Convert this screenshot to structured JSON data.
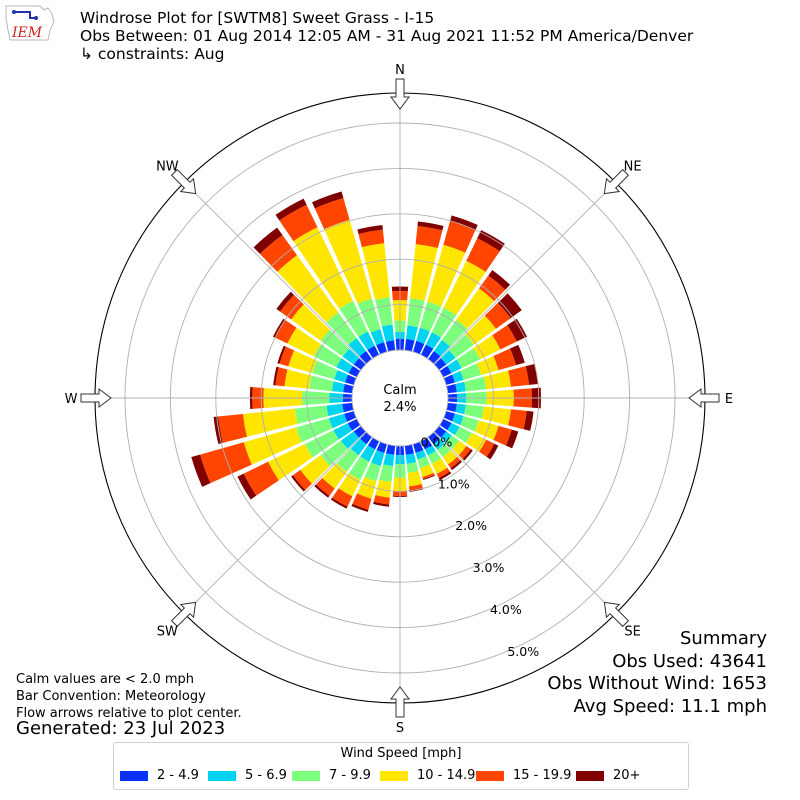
{
  "header": {
    "logo_text": "IEM",
    "title_line1": "Windrose Plot for [SWTM8] Sweet Grass - I-15",
    "title_line2": "Obs Between: 01 Aug 2014 12:05 AM - 31 Aug 2021 11:52 PM America/Denver",
    "title_line3": "↳ constraints: Aug"
  },
  "notes": {
    "line1": "Calm values are < 2.0 mph",
    "line2": "Bar Convention: Meteorology",
    "line3": "Flow arrows relative to plot center.",
    "generated": "Generated: 23 Jul 2023"
  },
  "summary": {
    "heading": "Summary",
    "obs_used": "Obs Used: 43641",
    "obs_without_wind": "Obs Without Wind: 1653",
    "avg_speed": "Avg Speed: 11.1 mph"
  },
  "chart_data": {
    "type": "windrose",
    "calm_label": "Calm",
    "calm_value": "2.4%",
    "direction_labels": [
      "N",
      "NE",
      "E",
      "SE",
      "S",
      "SW",
      "W",
      "NW"
    ],
    "radial_tick_labels": [
      "0.0%",
      "1.0%",
      "2.0%",
      "3.0%",
      "4.0%",
      "5.0%"
    ],
    "radial_range_percent": [
      0,
      5.5
    ],
    "grid": true,
    "legend_title": "Wind Speed [mph]",
    "legend_placement": "bottom",
    "bins": [
      {
        "label": "2 - 4.9",
        "color": "#0a32ff"
      },
      {
        "label": "5 - 6.9",
        "color": "#00d4f0"
      },
      {
        "label": "7 - 9.9",
        "color": "#7cff7c"
      },
      {
        "label": "10 - 14.9",
        "color": "#ffe600"
      },
      {
        "label": "15 - 19.9",
        "color": "#ff4500"
      },
      {
        "label": "20+",
        "color": "#800000"
      }
    ],
    "directions_deg": [
      0,
      10,
      20,
      30,
      40,
      50,
      60,
      70,
      80,
      90,
      100,
      110,
      120,
      130,
      140,
      150,
      160,
      170,
      180,
      190,
      200,
      210,
      220,
      230,
      240,
      250,
      260,
      270,
      280,
      290,
      300,
      310,
      320,
      330,
      340,
      350
    ],
    "frequency_percent_by_direction": [
      [
        0.25,
        0.15,
        0.25,
        0.45,
        0.2,
        0.1
      ],
      [
        0.25,
        0.3,
        0.6,
        1.2,
        0.4,
        0.1
      ],
      [
        0.25,
        0.3,
        0.6,
        1.3,
        0.55,
        0.12
      ],
      [
        0.25,
        0.3,
        0.6,
        1.15,
        0.55,
        0.2
      ],
      [
        0.22,
        0.3,
        0.55,
        0.85,
        0.35,
        0.15
      ],
      [
        0.2,
        0.25,
        0.5,
        0.6,
        0.4,
        0.3
      ],
      [
        0.2,
        0.25,
        0.45,
        0.5,
        0.4,
        0.25
      ],
      [
        0.2,
        0.2,
        0.4,
        0.4,
        0.4,
        0.2
      ],
      [
        0.2,
        0.2,
        0.45,
        0.55,
        0.4,
        0.2
      ],
      [
        0.2,
        0.2,
        0.45,
        0.6,
        0.4,
        0.2
      ],
      [
        0.2,
        0.2,
        0.4,
        0.6,
        0.35,
        0.15
      ],
      [
        0.2,
        0.2,
        0.35,
        0.45,
        0.3,
        0.15
      ],
      [
        0.2,
        0.2,
        0.3,
        0.35,
        0.2,
        0.1
      ],
      [
        0.2,
        0.15,
        0.2,
        0.2,
        0.12,
        0.05
      ],
      [
        0.2,
        0.15,
        0.2,
        0.2,
        0.1,
        0.05
      ],
      [
        0.2,
        0.15,
        0.2,
        0.25,
        0.1,
        0.05
      ],
      [
        0.2,
        0.15,
        0.2,
        0.2,
        0.05,
        0.02
      ],
      [
        0.2,
        0.2,
        0.2,
        0.3,
        0.1,
        0.02
      ],
      [
        0.2,
        0.2,
        0.3,
        0.3,
        0.1,
        0.02
      ],
      [
        0.2,
        0.25,
        0.35,
        0.35,
        0.15,
        0.05
      ],
      [
        0.2,
        0.3,
        0.35,
        0.4,
        0.25,
        0.05
      ],
      [
        0.2,
        0.3,
        0.45,
        0.4,
        0.25,
        0.05
      ],
      [
        0.2,
        0.3,
        0.45,
        0.45,
        0.2,
        0.05
      ],
      [
        0.2,
        0.35,
        0.55,
        0.55,
        0.2,
        0.05
      ],
      [
        0.22,
        0.35,
        0.7,
        0.9,
        0.6,
        0.15
      ],
      [
        0.22,
        0.35,
        0.75,
        1.2,
        1.0,
        0.2
      ],
      [
        0.22,
        0.35,
        0.7,
        1.15,
        0.55,
        0.1
      ],
      [
        0.2,
        0.3,
        0.6,
        0.85,
        0.25,
        0.05
      ],
      [
        0.2,
        0.25,
        0.5,
        0.55,
        0.2,
        0.05
      ],
      [
        0.2,
        0.25,
        0.5,
        0.55,
        0.2,
        0.05
      ],
      [
        0.2,
        0.3,
        0.55,
        0.65,
        0.3,
        0.05
      ],
      [
        0.2,
        0.3,
        0.6,
        0.8,
        0.3,
        0.1
      ],
      [
        0.22,
        0.35,
        0.7,
        1.55,
        0.55,
        0.2
      ],
      [
        0.22,
        0.35,
        0.75,
        1.8,
        0.55,
        0.15
      ],
      [
        0.22,
        0.3,
        0.7,
        1.8,
        0.5,
        0.15
      ],
      [
        0.22,
        0.35,
        0.6,
        1.2,
        0.3,
        0.1
      ]
    ]
  }
}
